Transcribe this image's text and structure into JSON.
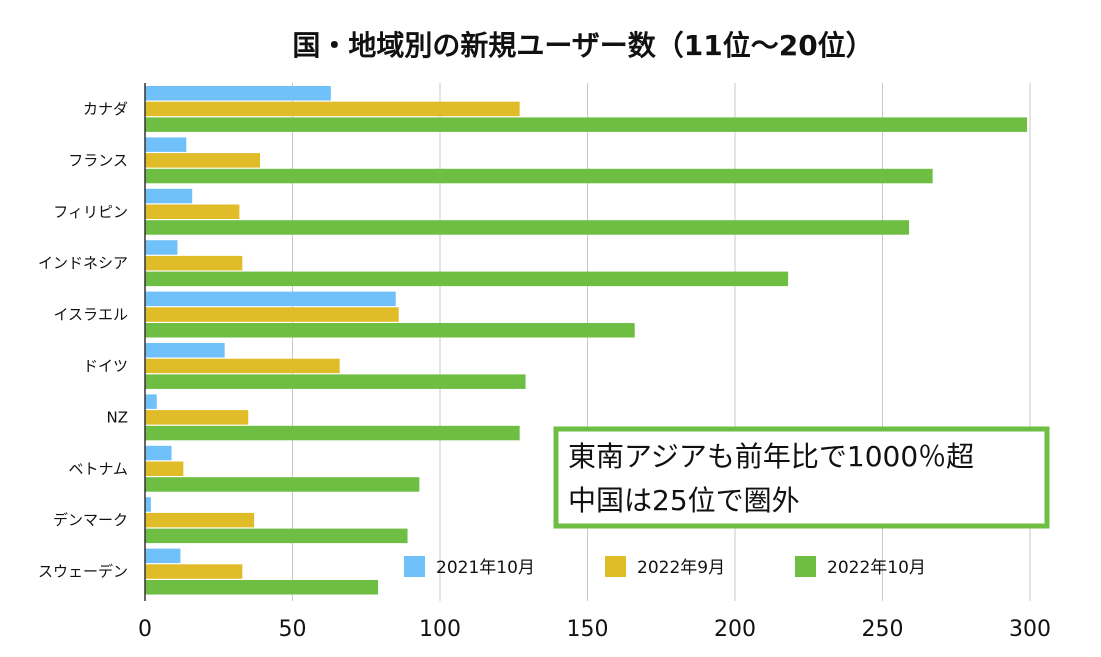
{
  "chart_data": {
    "type": "bar",
    "orientation": "horizontal",
    "title": "国・地域別の新規ユーザー数（11位〜20位）",
    "categories": [
      "カナダ",
      "フランス",
      "フィリピン",
      "インドネシア",
      "イスラエル",
      "ドイツ",
      "NZ",
      "ベトナム",
      "デンマーク",
      "スウェーデン"
    ],
    "series": [
      {
        "name": "2021年10月",
        "color": "#70C1F9",
        "values": [
          63,
          14,
          16,
          11,
          85,
          27,
          4,
          9,
          2,
          12
        ]
      },
      {
        "name": "2022年9月",
        "color": "#E0BC28",
        "values": [
          127,
          39,
          32,
          33,
          86,
          66,
          35,
          13,
          37,
          33
        ]
      },
      {
        "name": "2022年10月",
        "color": "#6DBE42",
        "values": [
          299,
          267,
          259,
          218,
          166,
          129,
          127,
          93,
          89,
          79
        ]
      }
    ],
    "xlim": [
      0,
      300
    ],
    "xticks": [
      0,
      50,
      100,
      150,
      200,
      250,
      300
    ],
    "grid": "vertical",
    "legend": "bottom-right",
    "annotation": {
      "lines": [
        "東南アジアも前年比で1000％超",
        "中国は25位で圏外"
      ],
      "border_color": "#6DBE42"
    }
  }
}
